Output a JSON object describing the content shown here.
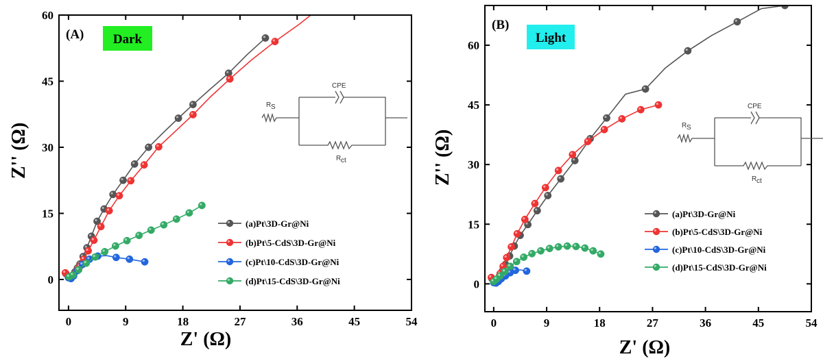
{
  "chart_data": [
    {
      "type": "scatter",
      "panel_label": "(A)",
      "condition_label": "Dark",
      "condition_bg": "#22ee22",
      "xlabel": "Z' (Ω)",
      "ylabel": "Z'' (Ω)",
      "xlim": [
        -1.5,
        54
      ],
      "ylim": [
        -7,
        60
      ],
      "xticks": [
        "0",
        "9",
        "18",
        "27",
        "36",
        "45",
        "54"
      ],
      "yticks": [
        "0",
        "15",
        "30",
        "45",
        "60"
      ],
      "circuit": {
        "cpe": "CPE",
        "rs": "R",
        "rs_sub": "S",
        "rct": "R",
        "rct_sub": "ct"
      },
      "series": [
        {
          "name": "(a)Pt\\3D-Gr@Ni",
          "color": "#555555",
          "x": [
            -0.4,
            0.2,
            0.6,
            1.0,
            1.4,
            1.8,
            2.3,
            2.9,
            3.6,
            4.5,
            5.6,
            7.0,
            8.6,
            10.4,
            12.6,
            14.9,
            17.3,
            19.6,
            22.4,
            25.2,
            28.1,
            31.0
          ],
          "y": [
            1.3,
            0.5,
            0.9,
            1.7,
            2.6,
            3.5,
            5.2,
            7.2,
            9.8,
            13.2,
            16.0,
            19.3,
            22.5,
            26.2,
            30.0,
            33.3,
            36.6,
            39.7,
            43.3,
            46.8,
            51.0,
            54.8
          ],
          "markers": [
            0,
            1,
            2,
            3,
            4,
            5,
            6,
            7,
            8,
            9,
            10,
            11,
            12,
            13,
            14,
            16,
            17,
            19,
            21
          ]
        },
        {
          "name": "(b)Pt\\5-CdS\\3D-Gr@Ni",
          "color": "#ee3333",
          "x": [
            -0.5,
            0.3,
            0.8,
            1.3,
            1.8,
            2.4,
            3.1,
            4.0,
            5.1,
            6.4,
            8.0,
            9.8,
            11.9,
            14.2,
            16.8,
            19.6,
            22.4,
            25.4,
            28.8,
            32.5,
            36.4,
            39.0,
            41.7
          ],
          "y": [
            1.5,
            0.6,
            1.1,
            2.0,
            3.0,
            4.6,
            6.5,
            8.9,
            12.0,
            15.6,
            19.0,
            22.4,
            26.0,
            30.1,
            33.6,
            37.4,
            41.5,
            45.5,
            49.8,
            54.0,
            58.0,
            61.0,
            64.0
          ],
          "markers": [
            0,
            1,
            2,
            3,
            4,
            5,
            6,
            7,
            8,
            9,
            10,
            11,
            12,
            13,
            15,
            17,
            19,
            21
          ]
        },
        {
          "name": "(c)Pt\\10-CdS\\3D-Gr@Ni",
          "color": "#2266dd",
          "x": [
            0.0,
            0.4,
            0.8,
            1.4,
            2.2,
            3.3,
            4.6,
            6.0,
            7.5,
            9.6,
            12.0
          ],
          "y": [
            0.4,
            0.2,
            0.8,
            2.0,
            3.4,
            4.6,
            5.3,
            5.4,
            5.0,
            4.6,
            4.0
          ],
          "markers": [
            0,
            1,
            2,
            3,
            4,
            5,
            6,
            8,
            9,
            10
          ]
        },
        {
          "name": "(d)Pt\\15-CdS\\3D-Gr@Ni",
          "color": "#33aa66",
          "x": [
            0.1,
            0.7,
            1.6,
            2.8,
            4.2,
            5.7,
            7.4,
            9.2,
            11.1,
            13.0,
            15.0,
            17.0,
            19.0,
            21.0
          ],
          "y": [
            0.6,
            1.0,
            2.2,
            3.7,
            5.1,
            6.3,
            7.6,
            8.8,
            10.0,
            11.2,
            12.4,
            13.7,
            15.1,
            16.8
          ],
          "markers": [
            0,
            1,
            2,
            3,
            4,
            5,
            6,
            7,
            8,
            9,
            10,
            11,
            12,
            13
          ]
        }
      ]
    },
    {
      "type": "scatter",
      "panel_label": "(B)",
      "condition_label": "Light",
      "condition_bg": "#22eeee",
      "xlabel": "Z' (Ω)",
      "ylabel": "Z'' (Ω)",
      "xlim": [
        -1.5,
        54
      ],
      "ylim": [
        -7,
        70
      ],
      "xticks": [
        "0",
        "9",
        "18",
        "27",
        "36",
        "45",
        "54"
      ],
      "yticks": [
        "0",
        "15",
        "30",
        "45",
        "60"
      ],
      "circuit": {
        "cpe": "CPE",
        "rs": "R",
        "rs_sub": "S",
        "rct": "R",
        "rct_sub": "ct"
      },
      "series": [
        {
          "name": "(a)Pt\\3D-Gr@Ni",
          "color": "#555555",
          "x": [
            -0.3,
            0.2,
            0.6,
            1.0,
            1.5,
            2.0,
            2.7,
            3.5,
            4.5,
            5.8,
            7.4,
            9.2,
            11.4,
            13.8,
            16.4,
            19.2,
            22.4,
            25.8,
            29.2,
            33.0,
            37.0,
            41.4,
            45.5,
            49.5
          ],
          "y": [
            1.3,
            0.4,
            0.9,
            2.0,
            3.3,
            4.9,
            7.0,
            9.5,
            12.2,
            14.9,
            18.4,
            22.2,
            26.4,
            31.0,
            36.5,
            41.7,
            47.7,
            49.0,
            54.3,
            58.6,
            62.4,
            65.9,
            69.2,
            70.0
          ],
          "markers": [
            0,
            1,
            2,
            3,
            4,
            5,
            6,
            7,
            8,
            9,
            10,
            11,
            12,
            13,
            14,
            15,
            17,
            19,
            21,
            23
          ]
        },
        {
          "name": "(b)Pt\\5-CdS\\3D-Gr@Ni",
          "color": "#ee3333",
          "x": [
            -0.4,
            0.3,
            0.7,
            1.1,
            1.6,
            2.2,
            3.0,
            4.0,
            5.3,
            7.0,
            8.8,
            11.0,
            13.4,
            16.0,
            18.8,
            21.8,
            25.0,
            28.0
          ],
          "y": [
            1.6,
            0.6,
            1.3,
            2.6,
            4.4,
            6.6,
            9.3,
            12.6,
            16.2,
            20.2,
            24.2,
            28.5,
            32.5,
            35.8,
            38.8,
            41.5,
            43.8,
            45.0
          ],
          "markers": [
            0,
            1,
            2,
            3,
            4,
            5,
            6,
            7,
            8,
            9,
            10,
            11,
            12,
            13,
            14,
            15,
            16,
            17
          ]
        },
        {
          "name": "(c)Pt\\10-CdS\\3D-Gr@Ni",
          "color": "#2266dd",
          "x": [
            0.0,
            0.4,
            0.8,
            1.3,
            2.0,
            2.8,
            3.7,
            4.6,
            5.6
          ],
          "y": [
            0.3,
            0.2,
            0.6,
            1.3,
            2.0,
            2.8,
            3.4,
            3.5,
            3.2
          ],
          "markers": [
            0,
            1,
            2,
            3,
            4,
            5,
            6,
            8
          ]
        },
        {
          "name": "(d)Pt\\15-CdS\\3D-Gr@Ni",
          "color": "#33aa66",
          "x": [
            0.0,
            0.5,
            1.1,
            1.9,
            2.8,
            3.9,
            5.1,
            6.5,
            8.0,
            9.5,
            11.0,
            12.5,
            14.0,
            15.5,
            16.9,
            18.2
          ],
          "y": [
            0.6,
            1.2,
            2.0,
            3.1,
            4.4,
            5.6,
            6.7,
            7.6,
            8.3,
            8.9,
            9.3,
            9.5,
            9.4,
            9.0,
            8.3,
            7.5
          ],
          "markers": [
            0,
            1,
            2,
            3,
            4,
            5,
            6,
            7,
            8,
            9,
            10,
            11,
            12,
            13,
            14,
            15
          ]
        }
      ]
    }
  ]
}
